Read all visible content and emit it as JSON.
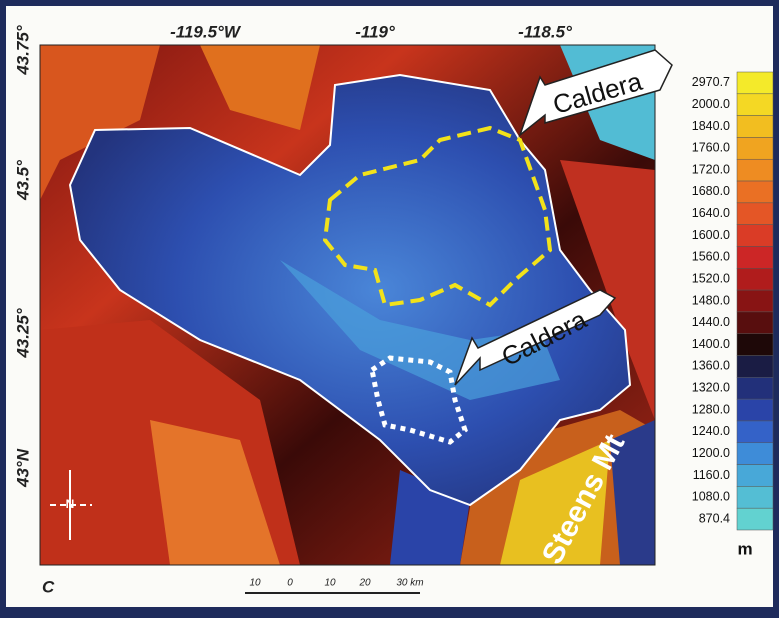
{
  "map": {
    "panel_label": "C",
    "longitude_labels": [
      "-119.5°W",
      "-119°",
      "-118.5°"
    ],
    "latitude_labels": [
      "43.75°",
      "43.5°",
      "43.25°",
      "43°N"
    ],
    "annotations": [
      "Caldera",
      "Caldera",
      "Steens Mt"
    ],
    "north": "N",
    "legend": {
      "unit": "m",
      "items": [
        {
          "label": "2970.7",
          "color": "#f4ea2a"
        },
        {
          "label": "2000.0",
          "color": "#f4d824"
        },
        {
          "label": "1840.0",
          "color": "#f2be20"
        },
        {
          "label": "1760.0",
          "color": "#f0a420"
        },
        {
          "label": "1720.0",
          "color": "#ee8c22"
        },
        {
          "label": "1680.0",
          "color": "#ea7024"
        },
        {
          "label": "1640.0",
          "color": "#e45626"
        },
        {
          "label": "1600.0",
          "color": "#da3c26"
        },
        {
          "label": "1560.0",
          "color": "#cc2626"
        },
        {
          "label": "1520.0",
          "color": "#b01c1c"
        },
        {
          "label": "1480.0",
          "color": "#881414"
        },
        {
          "label": "1440.0",
          "color": "#580e0e"
        },
        {
          "label": "1400.0",
          "color": "#1e0808"
        },
        {
          "label": "1360.0",
          "color": "#1a1c44"
        },
        {
          "label": "1320.0",
          "color": "#22307a"
        },
        {
          "label": "1280.0",
          "color": "#2a44a8"
        },
        {
          "label": "1240.0",
          "color": "#3462c8"
        },
        {
          "label": "1200.0",
          "color": "#3e8cd8"
        },
        {
          "label": "1160.0",
          "color": "#48a8d8"
        },
        {
          "label": "1080.0",
          "color": "#54bed4"
        },
        {
          "label": "870.4",
          "color": "#62d2d0"
        }
      ]
    },
    "scale_bar": [
      "10",
      "0",
      "10",
      "20",
      "30 km"
    ]
  }
}
